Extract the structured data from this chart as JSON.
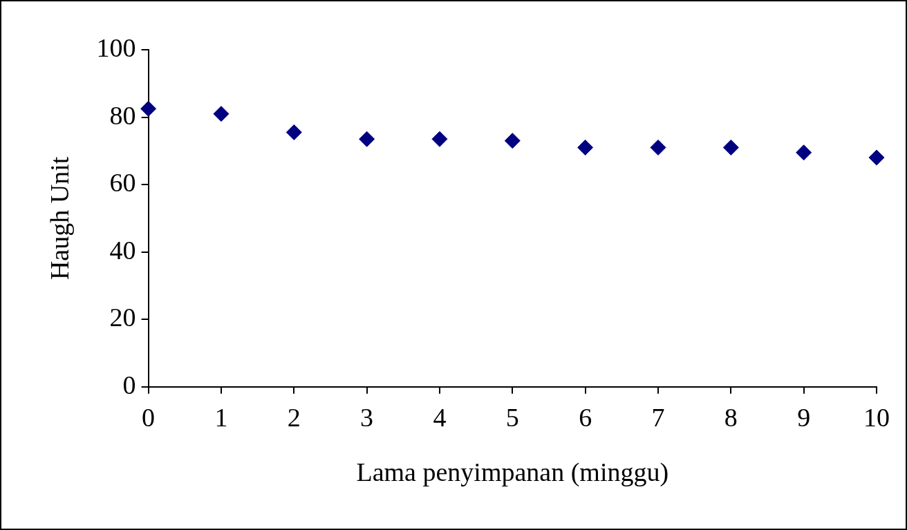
{
  "chart_data": {
    "type": "scatter",
    "xlabel": "Lama penyimpanan (minggu)",
    "ylabel": "Haugh Unit",
    "x": [
      0,
      1,
      2,
      3,
      4,
      5,
      6,
      7,
      8,
      9,
      10
    ],
    "values": [
      82.5,
      81,
      75.5,
      73.5,
      73.5,
      73,
      71,
      71,
      71,
      69.5,
      68
    ],
    "color": "#000080",
    "marker": "diamond",
    "xlim": [
      0,
      10
    ],
    "xticks": [
      0,
      1,
      2,
      3,
      4,
      5,
      6,
      7,
      8,
      9,
      10
    ],
    "ylim": [
      0,
      100
    ],
    "yticks": [
      0,
      20,
      40,
      60,
      80,
      100
    ]
  }
}
